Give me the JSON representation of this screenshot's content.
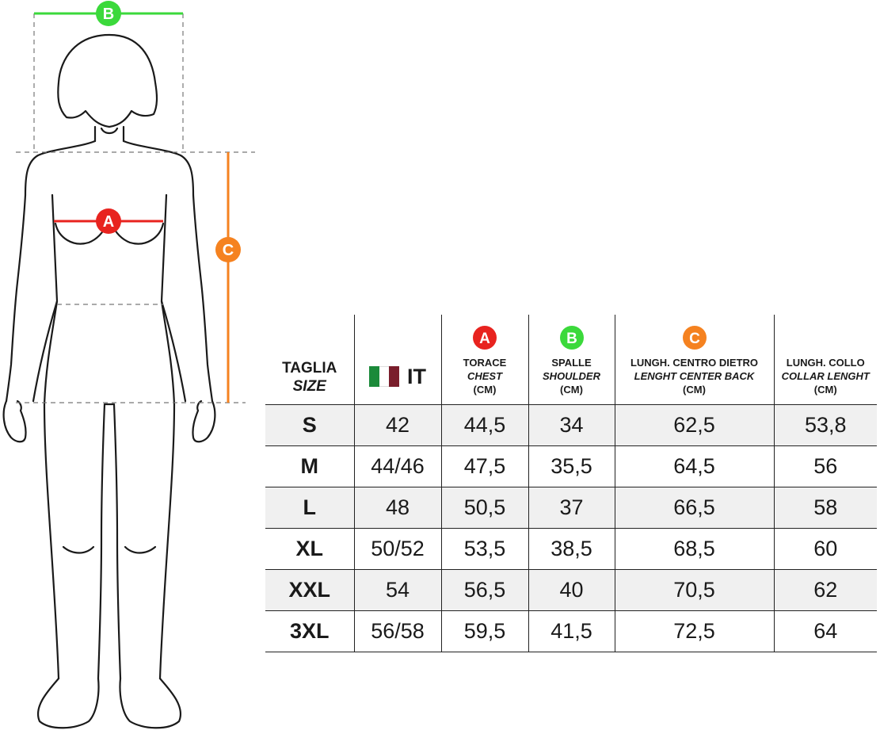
{
  "colors": {
    "marker_a": "#e8231f",
    "marker_b": "#3bd93b",
    "marker_c": "#f58220",
    "flag_green": "#1b8a3a",
    "flag_white": "#ffffff",
    "flag_red": "#7a1e2c"
  },
  "markers": {
    "a": "A",
    "b": "B",
    "c": "C"
  },
  "table": {
    "headers": {
      "size": {
        "main": "TAGLIA",
        "sub": "SIZE"
      },
      "it": {
        "label": "IT"
      },
      "chest": {
        "main": "TORACE",
        "sub": "CHEST",
        "unit": "(CM)",
        "marker": "A"
      },
      "shoulder": {
        "main": "SPALLE",
        "sub": "SHOULDER",
        "unit": "(CM)",
        "marker": "B"
      },
      "back": {
        "main": "LUNGH. CENTRO DIETRO",
        "sub": "LENGHT CENTER BACK",
        "unit": "(CM)",
        "marker": "C"
      },
      "collar": {
        "main": "LUNGH. COLLO",
        "sub": "COLLAR LENGHT",
        "unit": "(CM)"
      }
    },
    "rows": [
      {
        "size": "S",
        "it": "42",
        "chest": "44,5",
        "shoulder": "34",
        "back": "62,5",
        "collar": "53,8"
      },
      {
        "size": "M",
        "it": "44/46",
        "chest": "47,5",
        "shoulder": "35,5",
        "back": "64,5",
        "collar": "56"
      },
      {
        "size": "L",
        "it": "48",
        "chest": "50,5",
        "shoulder": "37",
        "back": "66,5",
        "collar": "58"
      },
      {
        "size": "XL",
        "it": "50/52",
        "chest": "53,5",
        "shoulder": "38,5",
        "back": "68,5",
        "collar": "60"
      },
      {
        "size": "XXL",
        "it": "54",
        "chest": "56,5",
        "shoulder": "40",
        "back": "70,5",
        "collar": "62"
      },
      {
        "size": "3XL",
        "it": "56/58",
        "chest": "59,5",
        "shoulder": "41,5",
        "back": "72,5",
        "collar": "64"
      }
    ]
  }
}
